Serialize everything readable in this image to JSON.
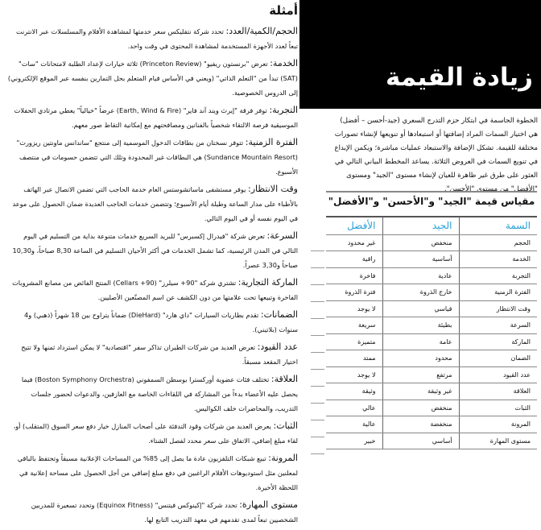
{
  "examples": {
    "title": "أمثلة",
    "items": [
      {
        "term": "الحجم/الكمية/العدد:",
        "text": " تحدد شركة نتفليكس سعر خدمتها لمشاهدة الأفلام والمسلسلات عبر الانترنت تبعاً لعدد الأجهزة المستخدمة لمشاهدة المحتوى في وقت واحد."
      },
      {
        "term": "الخدمة:",
        "text": " تعرض \"برنستون ريفيو\" (Princeton Review) ثلاثة خيارات لإعداد الطلبة لامتحانات \"سات\" (SAT) تبدأ من \"التعلم الذاتي\" (ويعني في الأساس قيام المتعلم بحل التمارين بنفسه عبر الموقع الإلكتروني) إلى الدروس الخصوصية."
      },
      {
        "term": "التجربة:",
        "text": " توفر فرقة \"إيرث ويند آند فاير\" (Earth, Wind & Fire) عرضاً \"خيالياً\" يعطي مرتادي الحفلات الموسيقية فرصة الالتقاء شخصياً بالفنانين ومصافحتهم مع إمكانية التقاط صور معهم."
      },
      {
        "term": "الفترة الزمنية:",
        "text": " تتوفر نسختان من بطاقات الدخول الموسمية إلى منتجع \"ساندانس ماونتين ريزورت\" (Sundance Mountain Resort) هي البطاقات غير المحدودة وتلك التي تتضمن حسومات في منتصف الأسبوع."
      },
      {
        "term": "وقت الانتظار:",
        "text": " يوفر مستشفى ماساتشوستس العام خدمة الحاجب التي تضمن الاتصال عبر الهاتف بالأطباء على مدار الساعة وطيلة أيام الأسبوع؛ وتتضمن خدمات الحاجب العديدة ضمان الحصول على موعد في اليوم نفسه أو في اليوم التالي."
      },
      {
        "term": "السرعة:",
        "text": " تعرض شركة \"فيدرال إكسبرس\" للبريد السريع خدمات متنوعة بداية من التسليم في اليوم التالي في المدن الرئيسية، كما تشمل الخدمات في أكثر الأحيان التسليم في الساعة 8,30 صباحاً، و10,30 صباحاً و3,30 عصراً."
      },
      {
        "term": "الماركة التجارية:",
        "text": " تشتري شركة \"90+ سيلرز\" (Cellars +90) المنتج الفائض من مصانع المشروبات الفاخرة وتبيعها تحت علامتها من دون الكشف عن اسم المصنّعين الأصليين."
      },
      {
        "term": "الضمانات:",
        "text": " تقدم بطاريات السيارات \"داي هارد\" (DieHard) ضماناً يتراوح بين 18 شهراً (ذهبي) و4 سنوات (بلاتيني)."
      },
      {
        "term": "عدد القيود:",
        "text": " تعرض العديد من شركات الطيران تذاكر سفر \"اقتصادية\" لا يمكن استرداد ثمنها ولا تتيح اختيار المقعد مسبقاً."
      },
      {
        "term": "العلاقة:",
        "text": " تختلف فئات عضوية أوركسترا بوسطن السمفوني (Boston Symphony Orchestra) فيما يحصل عليه الأعضاء بدءاً من المشاركة في اللقاءات الخاصة مع العازفين، والدعوات لحضور جلسات التدريب، والمحاضرات خلف الكواليس."
      },
      {
        "term": "الثبات:",
        "text": " يعرض العديد من شركات وقود التدفئة على أصحاب المنازل خيار دفع سعر السوق (المتقلب) أو، لقاء مبلغ إضافي، الاتفاق على سعر محدد لفصل الشتاء."
      },
      {
        "term": "المرونة:",
        "text": " تبيع شبكات التلفزيون عادة ما يصل إلى 85% من المساحات الإعلانية مسبقاً وتحتفظ بالباقي لمعلنين مثل استوديوهات الأفلام الراغبين في دفع مبلغ إضافي من أجل الحصول على مساحة إعلانية في اللحظة الأخيرة."
      },
      {
        "term": "مستوى المهارة:",
        "text": " تحدد شركة \"إكينوكس فيتنس\" (Equinox Fitness) وتحدد تسعيرة للمدربين الشخصيين تبعاً لمدى تقدمهم في معهد التدريب التابع لها."
      }
    ]
  },
  "header": {
    "title": "زيادة القيمة"
  },
  "intro": "الخطوة الحاسمة في ابتكار حزم التدرج السعري (جيد-أحسن – أفضل) هي اختيار السمات المراد إضافتها أو استبعادها أو تنويعها لإنشاء تصورات مختلفة للقيمة. تشكل الإضافة والاستبعاد عمليات مباشرة؛ ويكمن الإبداع في تنويع السمات في العروض الثلاثة. يساعد المخطط البياني التالي في العثور على طرق غير ظاهرة للعيان لإنشاء مستوى \"الجيد\" ومستوى \"الأفضل\" من مستوى \"الأحسن\".",
  "table": {
    "caption": "مقياس قيمة \"الجيد\" و\"الأحسن\" و\"الأفضل\"",
    "headers": [
      "السمة",
      "الجيد",
      "الأفضل"
    ],
    "header_color": "#2a9fd6",
    "rows": [
      [
        "الحجم",
        "منخفض",
        "غير محدود"
      ],
      [
        "الخدمة",
        "أساسية",
        "راقية"
      ],
      [
        "التجربة",
        "عادية",
        "فاخرة"
      ],
      [
        "الفترة الزمنية",
        "خارج الذروة",
        "فترة الذروة"
      ],
      [
        "وقت الانتظار",
        "قياسي",
        "لا يوجد"
      ],
      [
        "السرعة",
        "بطيئة",
        "سريعة"
      ],
      [
        "الماركة",
        "عامة",
        "متميزة"
      ],
      [
        "الضمان",
        "محدود",
        "ممتد"
      ],
      [
        "عدد القيود",
        "مرتفع",
        "لا يوجد"
      ],
      [
        "العلاقة",
        "غير وثيقة",
        "وثيقة"
      ],
      [
        "الثبات",
        "منخفض",
        "عالي"
      ],
      [
        "المرونة",
        "منخفضة",
        "عالية"
      ],
      [
        "مستوى المهارة",
        "أساسي",
        "خبير"
      ]
    ]
  }
}
